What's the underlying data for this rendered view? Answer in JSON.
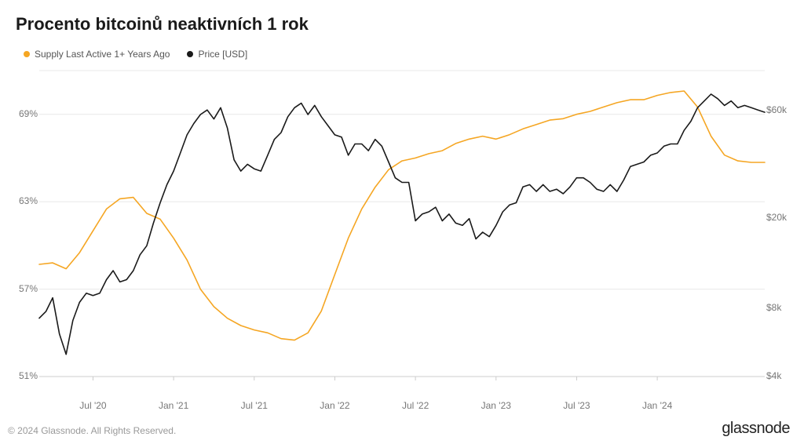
{
  "title": "Procento bitcoinů neaktivních 1 rok",
  "title_fontsize": 22,
  "legend": {
    "series1": {
      "label": "Supply Last Active 1+ Years Ago",
      "color": "#f5a623"
    },
    "series2": {
      "label": "Price [USD]",
      "color": "#1a1a1a"
    }
  },
  "footer": {
    "copyright": "© 2024 Glassnode. All Rights Reserved.",
    "brand": "glassnode"
  },
  "chart": {
    "type": "line-dual-axis",
    "background_color": "#ffffff",
    "grid_color": "#e8e8e8",
    "axis_label_color": "#777",
    "axis_label_fontsize": 12,
    "line_width": 1.6,
    "x": {
      "min": 0,
      "max": 54,
      "ticks": [
        4,
        10,
        16,
        22,
        28,
        34,
        40,
        46,
        52
      ],
      "labels": [
        "Jul '20",
        "Jan '21",
        "Jul '21",
        "Jan '22",
        "Jul '22",
        "Jan '23",
        "Jul '23",
        "Jan '24",
        ""
      ]
    },
    "y_left": {
      "min": 51,
      "max": 72,
      "ticks": [
        51,
        57,
        63,
        69
      ],
      "labels": [
        "51%",
        "57%",
        "63%",
        "69%"
      ]
    },
    "y_right": {
      "min_log": 3.602,
      "max_log": 4.954,
      "ticks_log": [
        3.602,
        3.903,
        4.301,
        4.778
      ],
      "labels": [
        "$4k",
        "$8k",
        "$20k",
        "$60k"
      ]
    },
    "series_supply": {
      "color": "#f5a623",
      "data": [
        [
          0,
          58.7
        ],
        [
          1,
          58.8
        ],
        [
          2,
          58.4
        ],
        [
          3,
          59.5
        ],
        [
          4,
          61.0
        ],
        [
          5,
          62.5
        ],
        [
          6,
          63.2
        ],
        [
          7,
          63.3
        ],
        [
          8,
          62.2
        ],
        [
          9,
          61.8
        ],
        [
          10,
          60.5
        ],
        [
          11,
          59.0
        ],
        [
          12,
          57.0
        ],
        [
          13,
          55.8
        ],
        [
          14,
          55.0
        ],
        [
          15,
          54.5
        ],
        [
          16,
          54.2
        ],
        [
          17,
          54.0
        ],
        [
          18,
          53.6
        ],
        [
          19,
          53.5
        ],
        [
          20,
          54.0
        ],
        [
          21,
          55.5
        ],
        [
          22,
          58.0
        ],
        [
          23,
          60.5
        ],
        [
          24,
          62.5
        ],
        [
          25,
          64.0
        ],
        [
          26,
          65.2
        ],
        [
          27,
          65.8
        ],
        [
          28,
          66.0
        ],
        [
          29,
          66.3
        ],
        [
          30,
          66.5
        ],
        [
          31,
          67.0
        ],
        [
          32,
          67.3
        ],
        [
          33,
          67.5
        ],
        [
          34,
          67.3
        ],
        [
          35,
          67.6
        ],
        [
          36,
          68.0
        ],
        [
          37,
          68.3
        ],
        [
          38,
          68.6
        ],
        [
          39,
          68.7
        ],
        [
          40,
          69.0
        ],
        [
          41,
          69.2
        ],
        [
          42,
          69.5
        ],
        [
          43,
          69.8
        ],
        [
          44,
          70.0
        ],
        [
          45,
          70.0
        ],
        [
          46,
          70.3
        ],
        [
          47,
          70.5
        ],
        [
          48,
          70.6
        ],
        [
          49,
          69.5
        ],
        [
          50,
          67.5
        ],
        [
          51,
          66.2
        ],
        [
          52,
          65.8
        ],
        [
          53,
          65.7
        ],
        [
          54,
          65.7
        ]
      ]
    },
    "series_price": {
      "color": "#1a1a1a",
      "data_log": [
        [
          0,
          3.86
        ],
        [
          0.5,
          3.89
        ],
        [
          1,
          3.95
        ],
        [
          1.5,
          3.79
        ],
        [
          2,
          3.7
        ],
        [
          2.5,
          3.85
        ],
        [
          3,
          3.93
        ],
        [
          3.5,
          3.97
        ],
        [
          4,
          3.96
        ],
        [
          4.5,
          3.97
        ],
        [
          5,
          4.03
        ],
        [
          5.5,
          4.07
        ],
        [
          6,
          4.02
        ],
        [
          6.5,
          4.03
        ],
        [
          7,
          4.07
        ],
        [
          7.5,
          4.14
        ],
        [
          8,
          4.18
        ],
        [
          8.5,
          4.28
        ],
        [
          9,
          4.37
        ],
        [
          9.5,
          4.45
        ],
        [
          10,
          4.51
        ],
        [
          10.5,
          4.59
        ],
        [
          11,
          4.67
        ],
        [
          11.5,
          4.72
        ],
        [
          12,
          4.76
        ],
        [
          12.5,
          4.78
        ],
        [
          13,
          4.74
        ],
        [
          13.5,
          4.79
        ],
        [
          14,
          4.7
        ],
        [
          14.5,
          4.56
        ],
        [
          15,
          4.51
        ],
        [
          15.5,
          4.54
        ],
        [
          16,
          4.52
        ],
        [
          16.5,
          4.51
        ],
        [
          17,
          4.58
        ],
        [
          17.5,
          4.65
        ],
        [
          18,
          4.68
        ],
        [
          18.5,
          4.75
        ],
        [
          19,
          4.79
        ],
        [
          19.5,
          4.81
        ],
        [
          20,
          4.76
        ],
        [
          20.5,
          4.8
        ],
        [
          21,
          4.75
        ],
        [
          21.5,
          4.71
        ],
        [
          22,
          4.67
        ],
        [
          22.5,
          4.66
        ],
        [
          23,
          4.58
        ],
        [
          23.5,
          4.63
        ],
        [
          24,
          4.63
        ],
        [
          24.5,
          4.6
        ],
        [
          25,
          4.65
        ],
        [
          25.5,
          4.62
        ],
        [
          26,
          4.55
        ],
        [
          26.5,
          4.48
        ],
        [
          27,
          4.46
        ],
        [
          27.5,
          4.46
        ],
        [
          28,
          4.29
        ],
        [
          28.5,
          4.32
        ],
        [
          29,
          4.33
        ],
        [
          29.5,
          4.35
        ],
        [
          30,
          4.29
        ],
        [
          30.5,
          4.32
        ],
        [
          31,
          4.28
        ],
        [
          31.5,
          4.27
        ],
        [
          32,
          4.3
        ],
        [
          32.5,
          4.21
        ],
        [
          33,
          4.24
        ],
        [
          33.5,
          4.22
        ],
        [
          34,
          4.27
        ],
        [
          34.5,
          4.33
        ],
        [
          35,
          4.36
        ],
        [
          35.5,
          4.37
        ],
        [
          36,
          4.44
        ],
        [
          36.5,
          4.45
        ],
        [
          37,
          4.42
        ],
        [
          37.5,
          4.45
        ],
        [
          38,
          4.42
        ],
        [
          38.5,
          4.43
        ],
        [
          39,
          4.41
        ],
        [
          39.5,
          4.44
        ],
        [
          40,
          4.48
        ],
        [
          40.5,
          4.48
        ],
        [
          41,
          4.46
        ],
        [
          41.5,
          4.43
        ],
        [
          42,
          4.42
        ],
        [
          42.5,
          4.45
        ],
        [
          43,
          4.42
        ],
        [
          43.5,
          4.47
        ],
        [
          44,
          4.53
        ],
        [
          44.5,
          4.54
        ],
        [
          45,
          4.55
        ],
        [
          45.5,
          4.58
        ],
        [
          46,
          4.59
        ],
        [
          46.5,
          4.62
        ],
        [
          47,
          4.63
        ],
        [
          47.5,
          4.63
        ],
        [
          48,
          4.69
        ],
        [
          48.5,
          4.73
        ],
        [
          49,
          4.79
        ],
        [
          49.5,
          4.82
        ],
        [
          50,
          4.85
        ],
        [
          50.5,
          4.83
        ],
        [
          51,
          4.8
        ],
        [
          51.5,
          4.82
        ],
        [
          52,
          4.79
        ],
        [
          52.5,
          4.8
        ],
        [
          53,
          4.79
        ],
        [
          53.5,
          4.78
        ],
        [
          54,
          4.77
        ]
      ]
    }
  }
}
